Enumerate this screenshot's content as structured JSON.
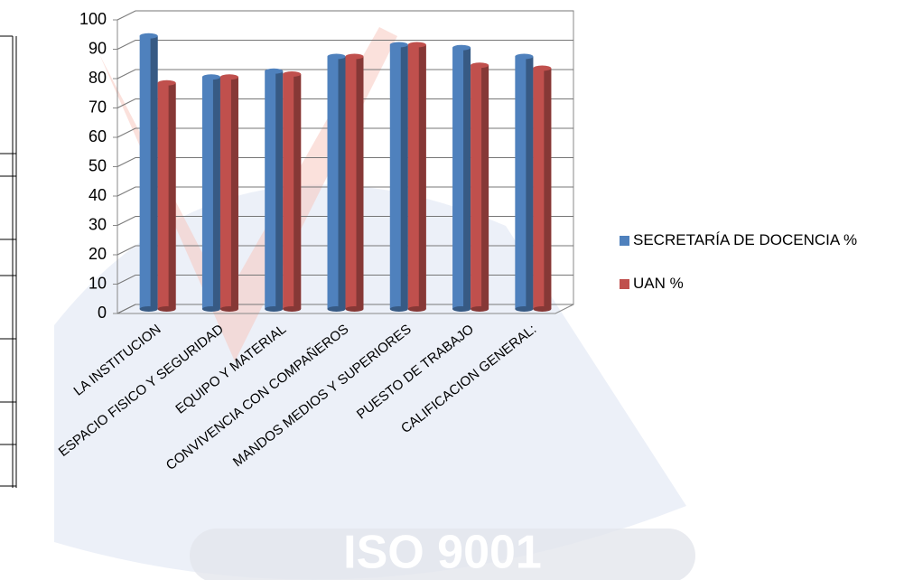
{
  "chart_data": {
    "type": "bar",
    "categories": [
      "LA INSTITUCION",
      "ESPACIO FISICO Y SEGURIDAD",
      "EQUIPO Y MATERIAL",
      "CONVIVENCIA CON COMPAÑEROS",
      "MANDOS MEDIOS Y SUPERIORES",
      "PUESTO DE TRABAJO",
      "CALIFICACION GENERAL:"
    ],
    "series": [
      {
        "name": "SECRETARÍA DE DOCENCIA %",
        "color": "#4f81bd",
        "values": [
          93,
          79,
          81,
          86,
          90,
          89,
          86
        ]
      },
      {
        "name": "UAN %",
        "color": "#c0504d",
        "values": [
          77,
          79,
          80,
          86,
          90,
          83,
          82
        ]
      }
    ],
    "ylim": [
      0,
      100
    ],
    "yticks": [
      0,
      10,
      20,
      30,
      40,
      50,
      60,
      70,
      80,
      90,
      100
    ],
    "grid": true,
    "legend": "right",
    "watermark": "ISO 9001"
  }
}
